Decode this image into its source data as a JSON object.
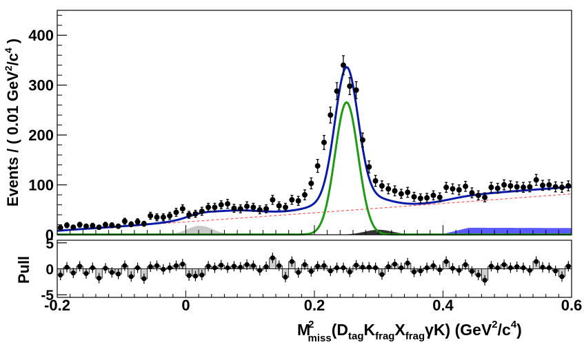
{
  "chart_data": [
    {
      "type": "scatter",
      "panel": "main",
      "ylabel": "Events / ( 0.01 GeV²/c⁴ )",
      "xlim": [
        -0.2,
        0.6
      ],
      "ylim": [
        0,
        450
      ],
      "yticks": [
        0,
        100,
        200,
        300,
        400
      ],
      "x": [
        -0.195,
        -0.185,
        -0.175,
        -0.165,
        -0.155,
        -0.145,
        -0.135,
        -0.125,
        -0.115,
        -0.105,
        -0.095,
        -0.085,
        -0.075,
        -0.065,
        -0.055,
        -0.045,
        -0.035,
        -0.025,
        -0.015,
        -0.005,
        0.005,
        0.015,
        0.025,
        0.035,
        0.045,
        0.055,
        0.065,
        0.075,
        0.085,
        0.095,
        0.105,
        0.115,
        0.125,
        0.135,
        0.145,
        0.155,
        0.165,
        0.175,
        0.185,
        0.195,
        0.205,
        0.215,
        0.225,
        0.235,
        0.245,
        0.255,
        0.265,
        0.275,
        0.285,
        0.295,
        0.305,
        0.315,
        0.325,
        0.335,
        0.345,
        0.355,
        0.365,
        0.375,
        0.385,
        0.395,
        0.405,
        0.415,
        0.425,
        0.435,
        0.445,
        0.455,
        0.465,
        0.475,
        0.485,
        0.495,
        0.505,
        0.515,
        0.525,
        0.535,
        0.545,
        0.555,
        0.565,
        0.575,
        0.585,
        0.595
      ],
      "values": [
        14,
        19,
        15,
        20,
        17,
        18,
        15,
        20,
        19,
        17,
        27,
        21,
        26,
        22,
        38,
        35,
        35,
        38,
        45,
        52,
        40,
        42,
        47,
        55,
        55,
        60,
        62,
        53,
        52,
        57,
        55,
        50,
        52,
        70,
        58,
        55,
        70,
        68,
        80,
        103,
        138,
        185,
        240,
        288,
        340,
        298,
        290,
        190,
        136,
        108,
        98,
        92,
        88,
        82,
        85,
        76,
        73,
        74,
        79,
        75,
        95,
        92,
        90,
        97,
        84,
        79,
        75,
        95,
        93,
        100,
        98,
        96,
        95,
        96,
        110,
        99,
        100,
        96,
        95,
        98
      ],
      "errors": [
        4,
        5,
        4,
        5,
        4,
        5,
        4,
        5,
        5,
        4,
        6,
        5,
        6,
        5,
        7,
        7,
        7,
        7,
        8,
        8,
        7,
        7,
        8,
        8,
        8,
        8,
        9,
        8,
        8,
        9,
        8,
        8,
        8,
        9,
        8,
        8,
        9,
        9,
        10,
        11,
        13,
        14,
        16,
        17,
        19,
        17,
        17,
        14,
        12,
        11,
        10,
        10,
        10,
        9,
        10,
        9,
        9,
        9,
        9,
        9,
        10,
        10,
        10,
        10,
        10,
        9,
        9,
        10,
        10,
        10,
        10,
        10,
        10,
        10,
        11,
        10,
        10,
        10,
        10,
        10
      ],
      "curves": [
        {
          "name": "total fit",
          "color": "#0a1aa8"
        },
        {
          "name": "signal",
          "color": "#1e9a12"
        },
        {
          "name": "combinatorial background",
          "color": "#ff5a5a"
        }
      ],
      "fills": [
        {
          "name": "peaking background A",
          "color": "#c8c8c8"
        },
        {
          "name": "peaking background B",
          "color": "#333333"
        },
        {
          "name": "peaking background C",
          "color": "#5a5aff"
        }
      ]
    },
    {
      "type": "bar",
      "panel": "pull",
      "ylabel": "Pull",
      "xlabel": "M²miss(DtagKfragXfragγK) (GeV²/c⁴)",
      "xlim": [
        -0.2,
        0.6
      ],
      "ylim": [
        -5.5,
        5.5
      ],
      "yticks": [
        -5,
        0,
        5
      ],
      "xticks": [
        -0.2,
        0,
        0.2,
        0.4,
        0.6
      ],
      "xtick_labels": [
        "-0.2",
        "0",
        "0.2",
        "0.4",
        "0.6"
      ],
      "values": [
        -1.2,
        0.3,
        -0.8,
        0.5,
        -0.9,
        0.2,
        -1.8,
        0.1,
        -0.7,
        -1.0,
        0.6,
        -1.5,
        0.2,
        -1.9,
        0.4,
        0.6,
        -0.1,
        0.2,
        0.6,
        0.9,
        -1.3,
        -1.4,
        -1.2,
        0.5,
        0.2,
        0.7,
        0.2,
        0.5,
        0.3,
        0.8,
        0.6,
        -0.3,
        0.4,
        2.1,
        0.6,
        -1.6,
        1.4,
        -0.7,
        0.8,
        -0.5,
        0.5,
        0.6,
        -0.4,
        0.2,
        0.2,
        -0.6,
        0.7,
        0.3,
        0.3,
        0.2,
        -1.1,
        0.4,
        0.9,
        0.2,
        1.1,
        -0.6,
        -0.4,
        0.2,
        0.6,
        -0.2,
        1.4,
        0.1,
        -0.3,
        0.8,
        -0.5,
        -1.2,
        -2.2,
        0.5,
        0.2,
        0.8,
        0.2,
        0.4,
        0.2,
        -0.3,
        1.4,
        0.3,
        0.2,
        -0.4,
        -1.5,
        0.5
      ]
    }
  ],
  "axes_text": {
    "ylabel_main": "Events / ( 0.01 GeV²/c⁴ )",
    "ylabel_pull": "Pull",
    "xlabel": "M²miss(DtagKfragXfragγK) (GeV²/c⁴)"
  }
}
